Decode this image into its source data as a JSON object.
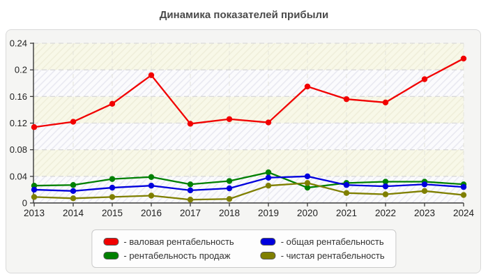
{
  "title": "Динамика показателей прибыли",
  "chart_data": {
    "type": "line",
    "x": [
      2013,
      2014,
      2015,
      2016,
      2017,
      2018,
      2019,
      2020,
      2021,
      2022,
      2023,
      2024
    ],
    "series": [
      {
        "name": "валовая рентабельность",
        "color": "#f10000",
        "values": [
          0.114,
          0.122,
          0.149,
          0.192,
          0.119,
          0.126,
          0.121,
          0.175,
          0.156,
          0.151,
          0.186,
          0.217
        ]
      },
      {
        "name": "рентабельность продаж",
        "color": "#008000",
        "values": [
          0.026,
          0.027,
          0.036,
          0.039,
          0.028,
          0.033,
          0.046,
          0.023,
          0.03,
          0.032,
          0.032,
          0.028
        ]
      },
      {
        "name": "общая рентабельность",
        "color": "#0000dd",
        "values": [
          0.02,
          0.018,
          0.023,
          0.026,
          0.019,
          0.022,
          0.038,
          0.04,
          0.027,
          0.025,
          0.028,
          0.024
        ]
      },
      {
        "name": "чистая рентабельность",
        "color": "#7f7f00",
        "values": [
          0.009,
          0.007,
          0.009,
          0.011,
          0.005,
          0.006,
          0.026,
          0.03,
          0.015,
          0.013,
          0.018,
          0.012
        ]
      }
    ],
    "ylim": [
      0,
      0.24
    ],
    "yticks": [
      0,
      0.04,
      0.08,
      0.12,
      0.16,
      0.2,
      0.24
    ],
    "ytick_labels": [
      "0",
      "0.04",
      "0.08",
      "0.12",
      "0.16",
      "0.2",
      "0.24"
    ],
    "grid": true,
    "legend_position": "bottom",
    "band_colors": {
      "cream_bg": "#f8f8e8",
      "cream_hatch": "#efeeda",
      "cool_bg": "#fbfbfd",
      "cool_hatch": "#e9e9f1"
    },
    "grid_color": "#d9d9d9",
    "axis_color": "#3a3a3a"
  },
  "legend": {
    "items": [
      {
        "label": "- валовая рентабельность",
        "color": "#f10000",
        "name": "gross-profitability"
      },
      {
        "label": "- общая рентабельность",
        "color": "#0000dd",
        "name": "total-profitability"
      },
      {
        "label": "- рентабельность продаж",
        "color": "#008000",
        "name": "sales-profitability"
      },
      {
        "label": "- чистая рентабельность",
        "color": "#7f7f00",
        "name": "net-profitability"
      }
    ]
  }
}
